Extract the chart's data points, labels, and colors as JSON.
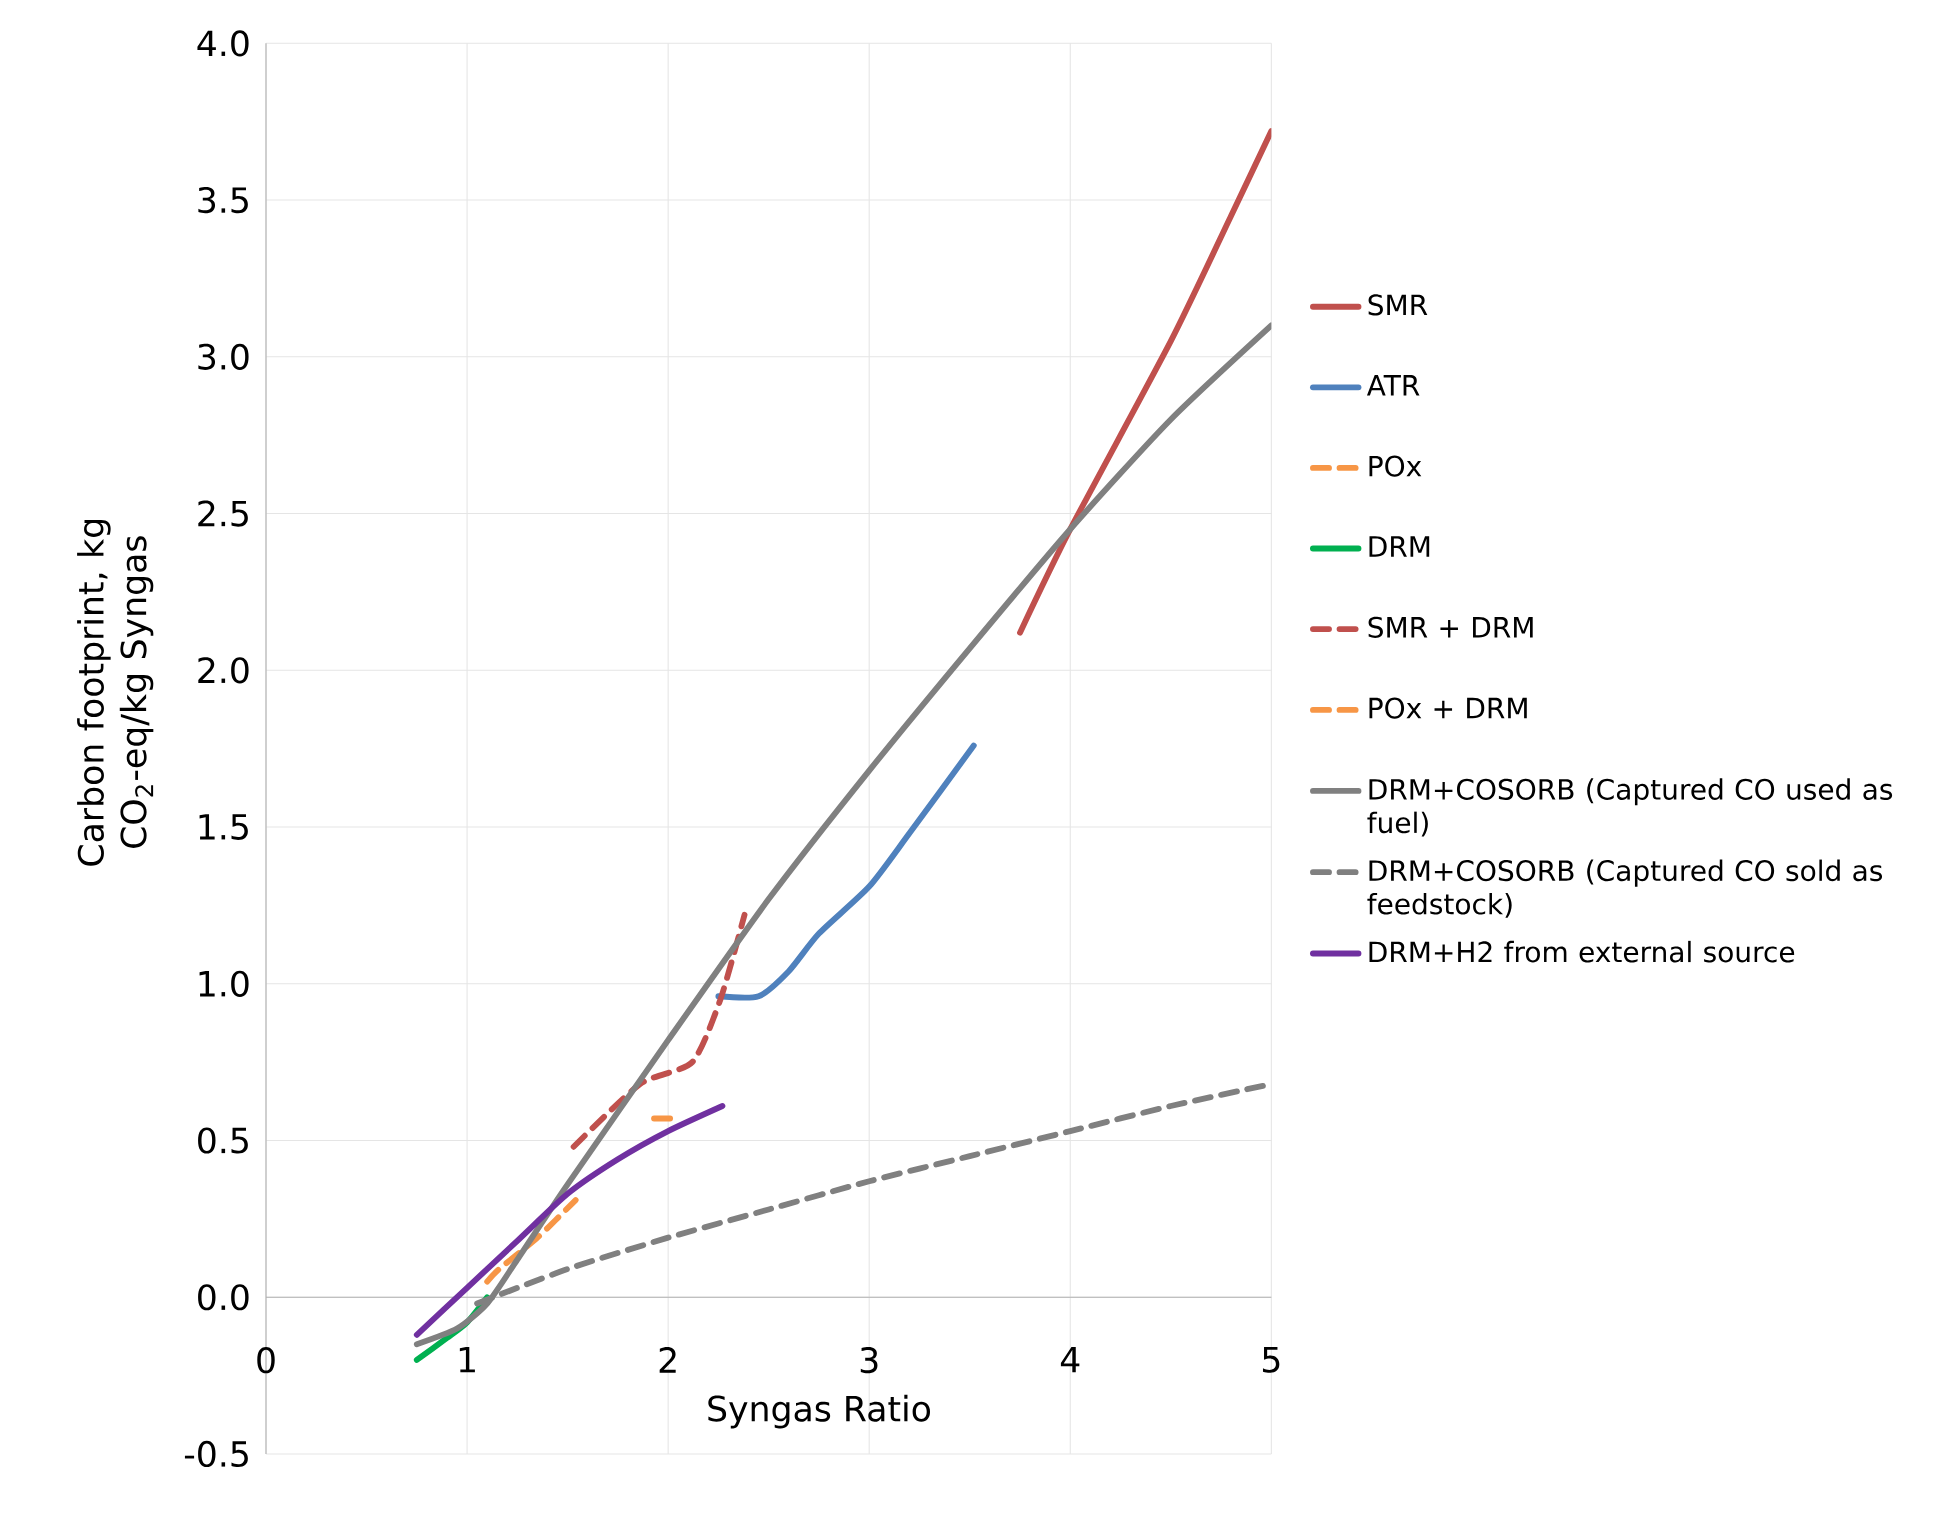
{
  "chart_data": {
    "type": "line",
    "xlabel": "Syngas Ratio",
    "ylabel": "Carbon footprint, kg CO$_{2}$-eq/kg Syngas",
    "xlim": [
      0,
      5
    ],
    "ylim": [
      -0.5,
      4.0
    ],
    "xticks": [
      0,
      1,
      2,
      3,
      4,
      5
    ],
    "yticks": [
      {
        "value": -0.5,
        "label": "-0.5"
      },
      {
        "value": 0,
        "label": "0.0"
      },
      {
        "value": 0.5,
        "label": "0.5"
      },
      {
        "value": 1,
        "label": "1.0"
      },
      {
        "value": 1.5,
        "label": "1.5"
      },
      {
        "value": 2,
        "label": "2.0"
      },
      {
        "value": 2.5,
        "label": "2.5"
      },
      {
        "value": 3,
        "label": "3.0"
      },
      {
        "value": 3.5,
        "label": "3.5"
      },
      {
        "value": 4,
        "label": "4.0"
      }
    ],
    "grid": true,
    "legend": "right",
    "marker": "none",
    "series": [
      {
        "name": "SMR",
        "color": "#c0504d",
        "x": [
          3.75,
          4.0,
          4.5,
          4.8,
          5.0
        ],
        "values": [
          2.12,
          2.45,
          3.05,
          3.45,
          3.72
        ]
      },
      {
        "name": "ATR",
        "color": "#4f81bd",
        "x": [
          2.25,
          2.45,
          2.6,
          2.75,
          3.0,
          3.2,
          3.52
        ],
        "values": [
          0.96,
          0.96,
          1.04,
          1.16,
          1.31,
          1.48,
          1.76
        ]
      },
      {
        "name": "POx",
        "color": "#f79646",
        "line_style": "dashed",
        "x": [
          1.93,
          2.06
        ],
        "values": [
          0.57,
          0.57
        ]
      },
      {
        "name": "DRM",
        "color": "#00b050",
        "x": [
          0.75,
          0.9,
          1.0,
          1.1
        ],
        "values": [
          -0.2,
          -0.13,
          -0.08,
          0.0
        ]
      },
      {
        "name": "SMR + DRM",
        "color": "#c0504d",
        "line_style": "dashed",
        "x": [
          1.53,
          1.86,
          2.12,
          2.26,
          2.38
        ],
        "values": [
          0.48,
          0.68,
          0.75,
          0.95,
          1.22
        ]
      },
      {
        "name": "POx + DRM",
        "color": "#f79646",
        "line_style": "dashed",
        "x": [
          1.1,
          1.16,
          1.35,
          1.54
        ],
        "values": [
          0.05,
          0.09,
          0.19,
          0.31
        ]
      },
      {
        "name": "DRM+COSORB (Captured CO used as fuel)",
        "color": "#808080",
        "x": [
          0.75,
          0.95,
          1.1,
          1.25,
          1.5,
          2.0,
          2.5,
          3.0,
          3.5,
          4.0,
          4.5,
          5.0
        ],
        "values": [
          -0.15,
          -0.1,
          -0.02,
          0.12,
          0.36,
          0.82,
          1.27,
          1.68,
          2.07,
          2.45,
          2.8,
          3.1
        ]
      },
      {
        "name": "DRM+COSORB (Captured CO sold as feedstock)",
        "color": "#808080",
        "line_style": "dashed",
        "x": [
          1.05,
          1.5,
          2.0,
          2.5,
          3.0,
          3.5,
          4.0,
          4.5,
          5.0
        ],
        "values": [
          -0.02,
          0.09,
          0.19,
          0.28,
          0.37,
          0.45,
          0.53,
          0.61,
          0.68
        ]
      },
      {
        "name": "DRM+H2 from external source",
        "color": "#7030a0",
        "x": [
          0.75,
          1.0,
          1.25,
          1.5,
          1.75,
          2.0,
          2.27
        ],
        "values": [
          -0.12,
          0.03,
          0.18,
          0.33,
          0.44,
          0.53,
          0.61
        ]
      }
    ]
  }
}
